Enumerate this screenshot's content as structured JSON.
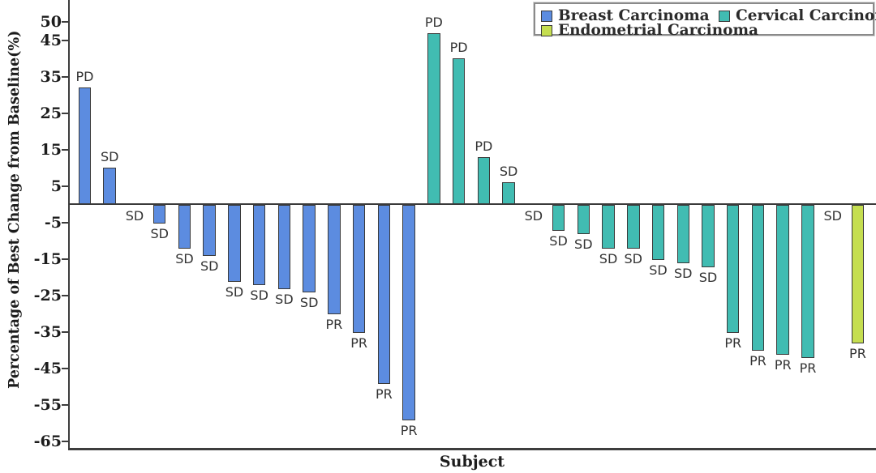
{
  "chart_data": {
    "type": "bar",
    "subtype": "waterfall-tumor-response",
    "title": "",
    "xlabel": "Subject",
    "ylabel": "Percentage of Best Change from Baseline(%)",
    "ylim": [
      -65,
      55
    ],
    "ytick_labels": [
      "50",
      "45",
      "35",
      "25",
      "15",
      "5",
      "-5",
      "-15",
      "-25",
      "-35",
      "-45",
      "-55",
      "-65"
    ],
    "ytick_values": [
      50,
      45,
      35,
      25,
      15,
      5,
      -5,
      -15,
      -25,
      -35,
      -45,
      -55,
      -65
    ],
    "grid": false,
    "legend_position": "top-right",
    "series": [
      {
        "name": "Breast Carcinoma",
        "color": "#5c8ce0",
        "values": [
          32,
          10,
          0,
          -5,
          -12,
          -14,
          -21,
          -22,
          -23,
          -24,
          -30,
          -35,
          -49,
          -59
        ],
        "response_labels": [
          "PD",
          "SD",
          "SD",
          "SD",
          "SD",
          "SD",
          "SD",
          "SD",
          "SD",
          "SD",
          "PR",
          "PR",
          "PR",
          "PR"
        ]
      },
      {
        "name": "Cervical Carcinoma",
        "color": "#41bcb2",
        "values": [
          47,
          40,
          13,
          6,
          0,
          -7,
          -8,
          -12,
          -12,
          -15,
          -16,
          -17,
          -35,
          -40,
          -41,
          -42
        ],
        "response_labels": [
          "PD",
          "PD",
          "PD",
          "SD",
          "SD",
          "SD",
          "SD",
          "SD",
          "SD",
          "SD",
          "SD",
          "SD",
          "PR",
          "PR",
          "PR",
          "PR"
        ]
      },
      {
        "name": "Endometrial Carcinoma",
        "color": "#c5de50",
        "values": [
          0,
          -38
        ],
        "response_labels": [
          "SD",
          "PR"
        ]
      }
    ]
  }
}
